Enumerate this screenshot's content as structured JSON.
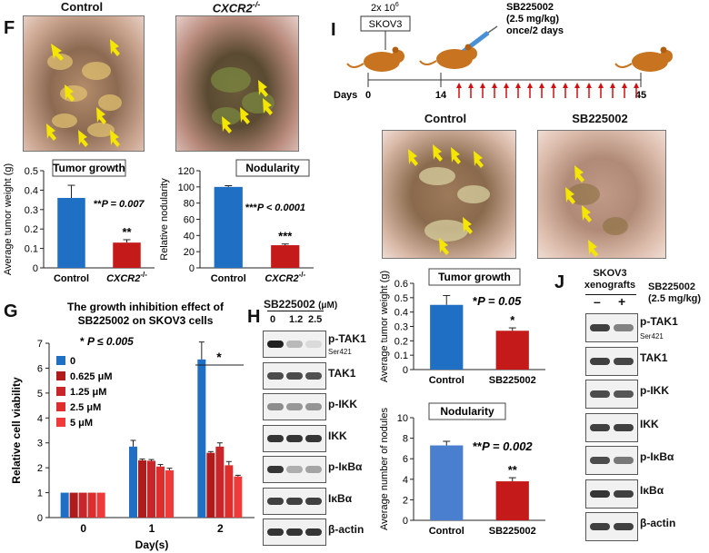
{
  "panel_f": {
    "letter": "F",
    "control_title": "Control",
    "ko_title": "CXCR2",
    "ko_sup": "-/-",
    "tumor_chart": {
      "title": "Tumor growth",
      "ylabel": "Average tumor weight (g)",
      "yticks": [
        "0",
        "0.1",
        "0.2",
        "0.3",
        "0.4",
        "0.5"
      ],
      "ylim": [
        0,
        0.5
      ],
      "categories": [
        "Control",
        "CXCR2"
      ],
      "cat_sup": "-/-",
      "values": [
        0.36,
        0.13
      ],
      "errors": [
        0.065,
        0.015
      ],
      "colors": [
        "#1f6fc5",
        "#c41a1a"
      ],
      "stars": "**",
      "pval_prefix": "**",
      "pval": "P = 0.007"
    },
    "nod_chart": {
      "title": "Nodularity",
      "ylabel": "Relative nodularity",
      "yticks": [
        "0",
        "20",
        "40",
        "60",
        "80",
        "100",
        "120"
      ],
      "ylim": [
        0,
        120
      ],
      "categories": [
        "Control",
        "CXCR2"
      ],
      "cat_sup": "-/-",
      "values": [
        100,
        28
      ],
      "errors": [
        1.5,
        1.5
      ],
      "colors": [
        "#1f6fc5",
        "#c41a1a"
      ],
      "stars": "***",
      "pval_prefix": "***",
      "pval": "P < 0.0001"
    }
  },
  "panel_g": {
    "letter": "G",
    "title_line1": "The growth inhibition effect of",
    "title_line2": "SB225002 on SKOV3 cells",
    "pval": "* P ≤ 0.005",
    "sig_star": "*",
    "ylabel": "Relative cell viability",
    "xlabel": "Day(s)",
    "yticks": [
      "0",
      "1",
      "2",
      "3",
      "4",
      "5",
      "6",
      "7"
    ],
    "ylim": [
      0,
      7
    ],
    "categories": [
      "0",
      "1",
      "2"
    ],
    "series": [
      {
        "name": "0",
        "color": "#1f6fc5",
        "values": [
          1.0,
          2.85,
          6.35
        ],
        "errors": [
          0,
          0.25,
          0.7
        ]
      },
      {
        "name": "0.625 μM",
        "color": "#b01c1c",
        "values": [
          1.0,
          2.3,
          2.6
        ],
        "errors": [
          0,
          0.05,
          0.05
        ]
      },
      {
        "name": "1.25 μM",
        "color": "#c8262a",
        "values": [
          1.0,
          2.28,
          2.85
        ],
        "errors": [
          0,
          0.05,
          0.15
        ]
      },
      {
        "name": "2.5 μM",
        "color": "#dd2e2e",
        "values": [
          1.0,
          2.05,
          2.1
        ],
        "errors": [
          0,
          0.08,
          0.15
        ]
      },
      {
        "name": "5 μM",
        "color": "#f03a3a",
        "values": [
          1.0,
          1.9,
          1.65
        ],
        "errors": [
          0,
          0.08,
          0.05
        ]
      }
    ]
  },
  "panel_h": {
    "letter": "H",
    "header": "SB225002",
    "header_unit": "(μM)",
    "doses": [
      "0",
      "1.2",
      "2.5"
    ],
    "rows": [
      {
        "label": "p-TAK1",
        "sub": "Ser421"
      },
      {
        "label": "TAK1",
        "sub": ""
      },
      {
        "label": "p-IKK",
        "sub": ""
      },
      {
        "label": "IKK",
        "sub": ""
      },
      {
        "label": "p-IκBα",
        "sub": ""
      },
      {
        "label": "IκBα",
        "sub": ""
      },
      {
        "label": "β-actin",
        "sub": ""
      }
    ]
  },
  "panel_i": {
    "letter": "I",
    "cells_count": "2x 10",
    "cells_exp": "6",
    "cell_line": "SKOV3",
    "drug_line1": "SB225002",
    "drug_line2": "(2.5 mg/kg)",
    "drug_line3": "once/2 days",
    "days_label": "Days",
    "day_ticks": [
      "0",
      "14",
      "45"
    ],
    "control_title": "Control",
    "drug_title": "SB225002",
    "tumor_chart": {
      "title": "Tumor growth",
      "ylabel": "Average tumor weight (g)",
      "yticks": [
        "0",
        "0.1",
        "0.2",
        "0.3",
        "0.4",
        "0.5",
        "0.6"
      ],
      "ylim": [
        0,
        0.6
      ],
      "categories": [
        "Control",
        "SB225002"
      ],
      "values": [
        0.45,
        0.27
      ],
      "errors": [
        0.065,
        0.02
      ],
      "colors": [
        "#1f6fc5",
        "#c41a1a"
      ],
      "stars": "*",
      "pval_prefix": "*",
      "pval": "P = 0.05"
    },
    "nod_chart": {
      "title": "Nodularity",
      "ylabel": "Average number of nodules",
      "yticks": [
        "0",
        "2",
        "4",
        "6",
        "8",
        "10"
      ],
      "ylim": [
        0,
        10
      ],
      "categories": [
        "Control",
        "SB225002"
      ],
      "values": [
        7.3,
        3.8
      ],
      "errors": [
        0.4,
        0.35
      ],
      "colors": [
        "#4a7fd0",
        "#c41a1a"
      ],
      "stars": "**",
      "pval_prefix": "**",
      "pval": "P = 0.002"
    }
  },
  "panel_j": {
    "letter": "J",
    "header_line1": "SKOV3",
    "header_line2": "xenografts",
    "minus": "–",
    "plus": "+",
    "drug_line1": "SB225002",
    "drug_line2": "(2.5 mg/kg)",
    "rows": [
      {
        "label": "p-TAK1",
        "sub": "Ser421"
      },
      {
        "label": "TAK1",
        "sub": ""
      },
      {
        "label": "p-IKK",
        "sub": ""
      },
      {
        "label": "IKK",
        "sub": ""
      },
      {
        "label": "p-IκBα",
        "sub": ""
      },
      {
        "label": "IκBα",
        "sub": ""
      },
      {
        "label": "β-actin",
        "sub": ""
      }
    ]
  }
}
